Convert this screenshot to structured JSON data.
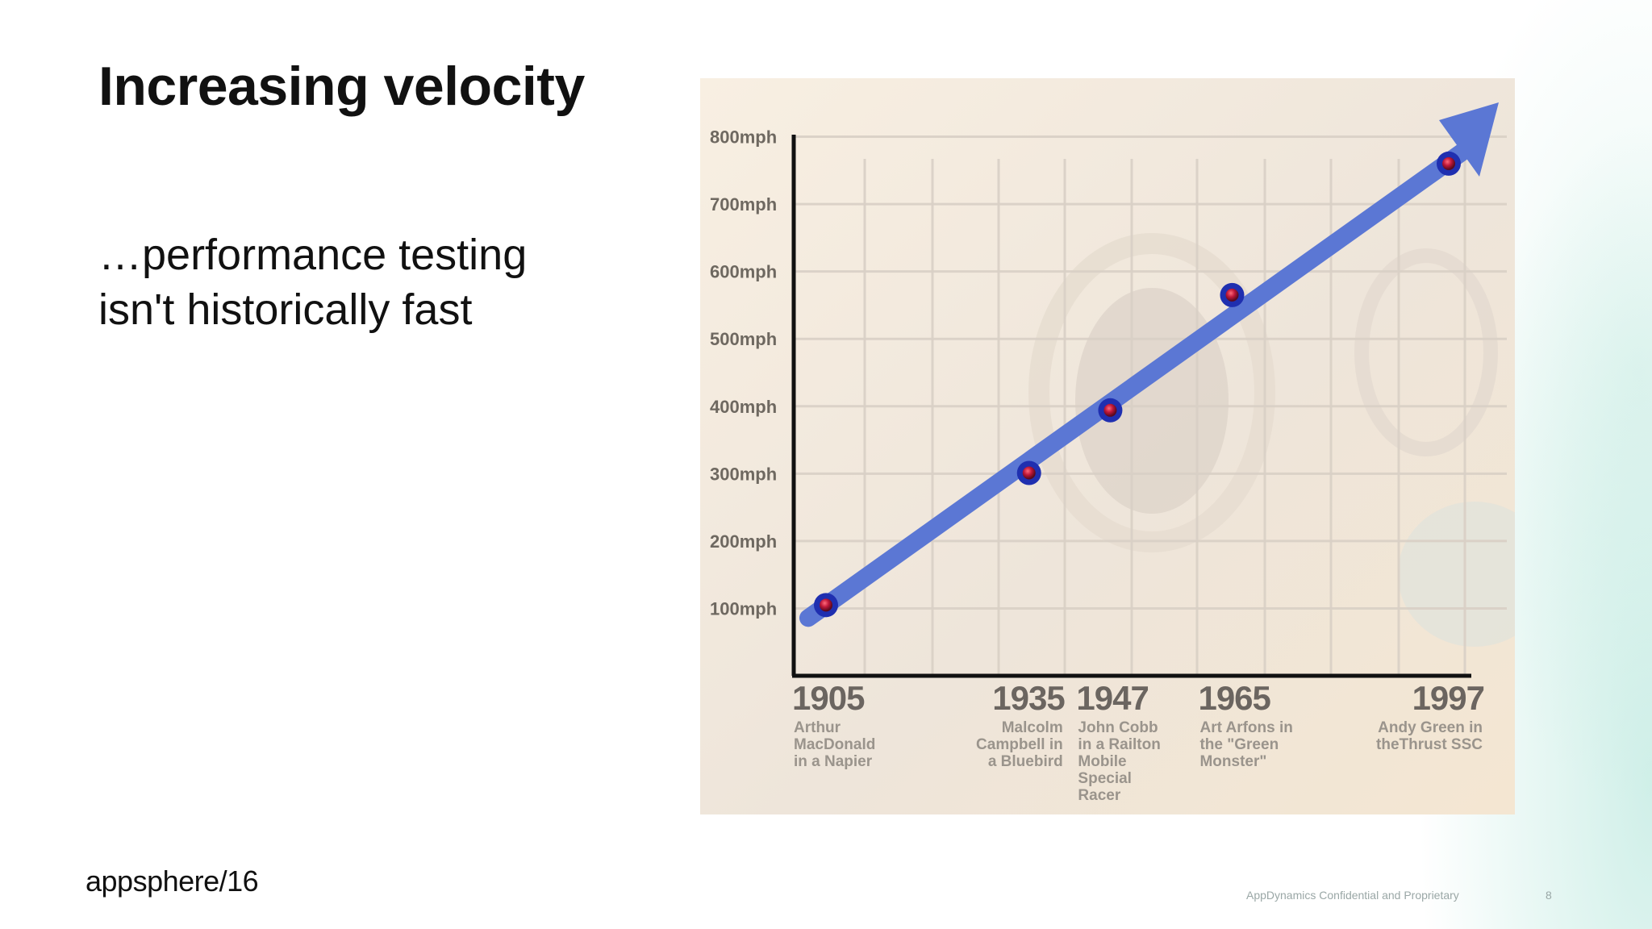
{
  "slide": {
    "title": "Increasing velocity",
    "subtitle_lines": [
      "…performance testing",
      "isn't historically fast"
    ],
    "logo_main": "appsphere",
    "logo_suffix": "/16",
    "footer": "AppDynamics Confidential and Proprietary",
    "page_number": "8"
  },
  "colors": {
    "chart_bg": "#f3e7d6",
    "arrow": "#5b77d4",
    "point_outer": "#1f2fb0",
    "point_inner": "#c0183a",
    "axis": "#111111",
    "grid": "#d9d0c6"
  },
  "chart_data": {
    "type": "line",
    "x_ticks": [
      "1905",
      "1935",
      "1947",
      "1965",
      "1997"
    ],
    "y_ticks": [
      "100mph",
      "200mph",
      "300mph",
      "400mph",
      "500mph",
      "600mph",
      "700mph",
      "800mph"
    ],
    "ylim": [
      0,
      800
    ],
    "grid": true,
    "points": [
      {
        "year": "1905",
        "speed": 105,
        "label": [
          "Arthur",
          "MacDonald",
          "in a Napier"
        ],
        "align": "start"
      },
      {
        "year": "1935",
        "speed": 301,
        "label": [
          "Malcolm",
          "Campbell in",
          "a Bluebird"
        ],
        "align": "end"
      },
      {
        "year": "1947",
        "speed": 394,
        "label": [
          "John Cobb",
          "in a Railton",
          "Mobile",
          "Special",
          "Racer"
        ],
        "align": "start"
      },
      {
        "year": "1965",
        "speed": 565,
        "label": [
          "Art Arfons in",
          "the \"Green",
          "Monster\""
        ],
        "align": "start"
      },
      {
        "year": "1997",
        "speed": 760,
        "label": [
          "Andy Green in",
          "theThrust SSC"
        ],
        "align": "end"
      }
    ]
  }
}
